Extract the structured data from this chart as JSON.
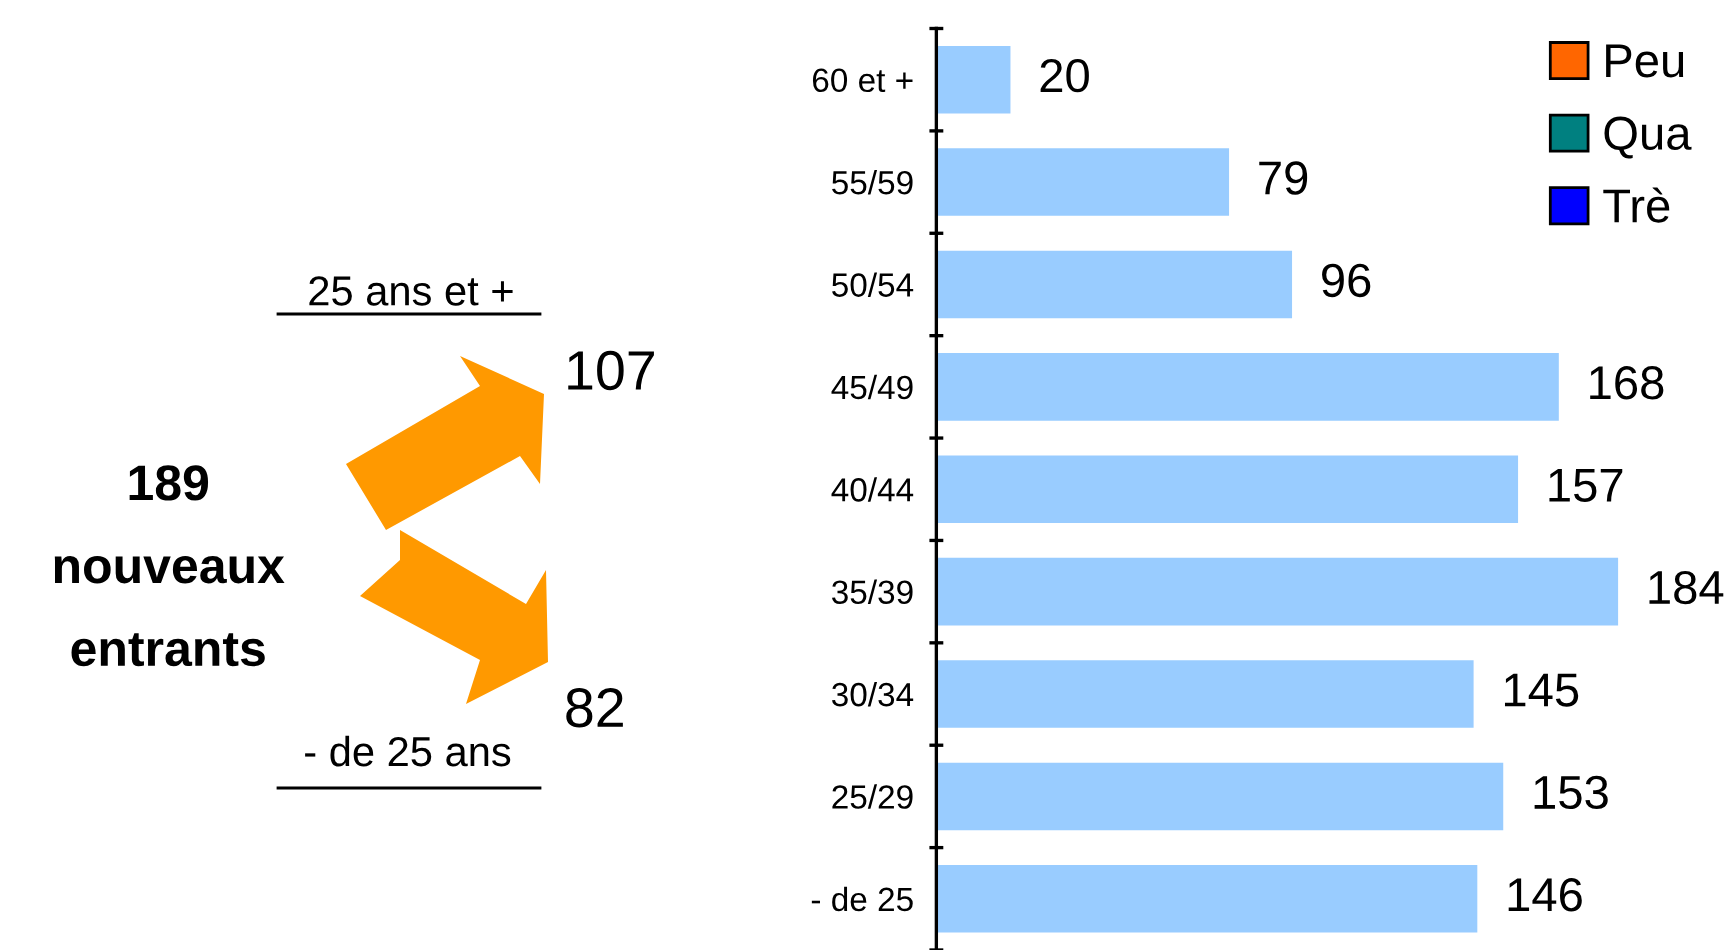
{
  "chart_data": {
    "type": "bar",
    "orientation": "horizontal",
    "categories": [
      "60 et +",
      "55/59",
      "50/54",
      "45/49",
      "40/44",
      "35/39",
      "30/34",
      "25/29",
      "- de 25"
    ],
    "series": [
      {
        "color": "#99ccff",
        "values": [
          20,
          79,
          96,
          168,
          157,
          184,
          145,
          153,
          146
        ]
      },
      {
        "name": "Peu",
        "color": "#ff6600",
        "values": [
          null,
          null,
          null,
          null,
          null,
          null,
          null,
          null,
          null
        ]
      },
      {
        "name": "Qua",
        "color": "#008080",
        "values": [
          null,
          null,
          null,
          null,
          null,
          null,
          null,
          null,
          null
        ]
      },
      {
        "name": "Trè",
        "color": "#0000ff",
        "values": [
          null,
          null,
          null,
          null,
          null,
          null,
          null,
          null,
          null
        ]
      }
    ],
    "data_labels": true,
    "legend": "top right",
    "grid": false,
    "annotations": [
      "189\nnouveaux\nentrants",
      "25 ans et +",
      "107",
      "- de 25 ans",
      "82"
    ]
  }
}
